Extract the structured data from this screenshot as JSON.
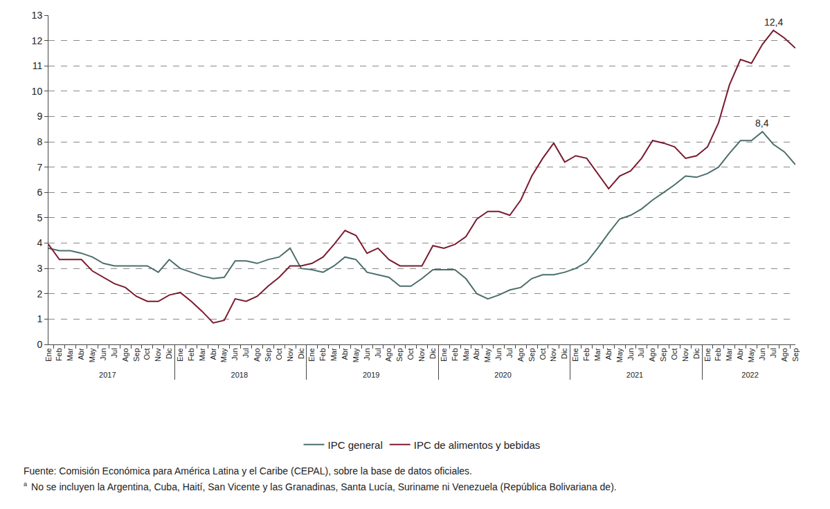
{
  "chart_data": {
    "type": "line",
    "categories": [
      [
        "2017",
        "Ene"
      ],
      [
        "2017",
        "Feb"
      ],
      [
        "2017",
        "Mar"
      ],
      [
        "2017",
        "Abr"
      ],
      [
        "2017",
        "May"
      ],
      [
        "2017",
        "Jun"
      ],
      [
        "2017",
        "Jul"
      ],
      [
        "2017",
        "Ago"
      ],
      [
        "2017",
        "Sep"
      ],
      [
        "2017",
        "Oct"
      ],
      [
        "2017",
        "Nov"
      ],
      [
        "2017",
        "Dic"
      ],
      [
        "2018",
        "Ene"
      ],
      [
        "2018",
        "Feb"
      ],
      [
        "2018",
        "Mar"
      ],
      [
        "2018",
        "Abr"
      ],
      [
        "2018",
        "May"
      ],
      [
        "2018",
        "Jun"
      ],
      [
        "2018",
        "Jul"
      ],
      [
        "2018",
        "Ago"
      ],
      [
        "2018",
        "Sep"
      ],
      [
        "2018",
        "Oct"
      ],
      [
        "2018",
        "Nov"
      ],
      [
        "2018",
        "Dic"
      ],
      [
        "2019",
        "Ene"
      ],
      [
        "2019",
        "Feb"
      ],
      [
        "2019",
        "Mar"
      ],
      [
        "2019",
        "Abr"
      ],
      [
        "2019",
        "May"
      ],
      [
        "2019",
        "Jun"
      ],
      [
        "2019",
        "Jul"
      ],
      [
        "2019",
        "Ago"
      ],
      [
        "2019",
        "Sep"
      ],
      [
        "2019",
        "Oct"
      ],
      [
        "2019",
        "Nov"
      ],
      [
        "2019",
        "Dic"
      ],
      [
        "2020",
        "Ene"
      ],
      [
        "2020",
        "Feb"
      ],
      [
        "2020",
        "Mar"
      ],
      [
        "2020",
        "Abr"
      ],
      [
        "2020",
        "May"
      ],
      [
        "2020",
        "Jun"
      ],
      [
        "2020",
        "Jul"
      ],
      [
        "2020",
        "Ago"
      ],
      [
        "2020",
        "Sep"
      ],
      [
        "2020",
        "Oct"
      ],
      [
        "2020",
        "Nov"
      ],
      [
        "2020",
        "Dic"
      ],
      [
        "2021",
        "Ene"
      ],
      [
        "2021",
        "Feb"
      ],
      [
        "2021",
        "Mar"
      ],
      [
        "2021",
        "Abr"
      ],
      [
        "2021",
        "May"
      ],
      [
        "2021",
        "Jun"
      ],
      [
        "2021",
        "Jul"
      ],
      [
        "2021",
        "Ago"
      ],
      [
        "2021",
        "Sep"
      ],
      [
        "2021",
        "Oct"
      ],
      [
        "2021",
        "Nov"
      ],
      [
        "2021",
        "Dic"
      ],
      [
        "2022",
        "Ene"
      ],
      [
        "2022",
        "Feb"
      ],
      [
        "2022",
        "Mar"
      ],
      [
        "2022",
        "Abr"
      ],
      [
        "2022",
        "May"
      ],
      [
        "2022",
        "Jun"
      ],
      [
        "2022",
        "Jul"
      ],
      [
        "2022",
        "Ago"
      ],
      [
        "2022",
        "Sep"
      ]
    ],
    "series": [
      {
        "name": "IPC general",
        "color": "#4a6e6c",
        "values": [
          3.8,
          3.7,
          3.7,
          3.6,
          3.45,
          3.2,
          3.1,
          3.1,
          3.1,
          3.1,
          2.85,
          3.35,
          3.0,
          2.85,
          2.7,
          2.6,
          2.65,
          3.3,
          3.3,
          3.2,
          3.35,
          3.45,
          3.8,
          3.0,
          2.95,
          2.85,
          3.1,
          3.45,
          3.35,
          2.85,
          2.75,
          2.65,
          2.3,
          2.3,
          2.6,
          2.95,
          2.95,
          2.95,
          2.6,
          2.0,
          1.8,
          1.95,
          2.15,
          2.25,
          2.6,
          2.75,
          2.75,
          2.85,
          3.0,
          3.25,
          3.8,
          4.4,
          4.95,
          5.1,
          5.35,
          5.7,
          6.0,
          6.3,
          6.65,
          6.6,
          6.75,
          7.0,
          7.55,
          8.05,
          8.05,
          8.4,
          7.9,
          7.6,
          7.1
        ]
      },
      {
        "name": "IPC de alimentos y bebidas",
        "color": "#7b1a2e",
        "values": [
          3.95,
          3.35,
          3.35,
          3.35,
          2.9,
          2.65,
          2.4,
          2.25,
          1.9,
          1.7,
          1.7,
          1.95,
          2.05,
          1.7,
          1.3,
          0.85,
          0.95,
          1.8,
          1.7,
          1.9,
          2.3,
          2.65,
          3.1,
          3.1,
          3.2,
          3.45,
          3.95,
          4.5,
          4.3,
          3.6,
          3.8,
          3.35,
          3.1,
          3.1,
          3.1,
          3.9,
          3.8,
          3.95,
          4.25,
          4.95,
          5.25,
          5.25,
          5.1,
          5.7,
          6.65,
          7.35,
          7.95,
          7.2,
          7.45,
          7.35,
          6.75,
          6.15,
          6.65,
          6.85,
          7.35,
          8.05,
          7.95,
          7.8,
          7.35,
          7.45,
          7.8,
          8.75,
          10.25,
          11.25,
          11.1,
          11.85,
          12.4,
          12.1,
          11.7
        ]
      }
    ],
    "ylim": [
      0,
      13
    ],
    "yticks": [
      0,
      1,
      2,
      3,
      4,
      5,
      6,
      7,
      8,
      9,
      10,
      11,
      12,
      13
    ],
    "grid": true,
    "legend": "bottom",
    "annotations": [
      {
        "text": "12,4",
        "year": "2022",
        "month": "Jul",
        "value": 12.4
      },
      {
        "text": "8,4",
        "year": "2022",
        "month": "Jun",
        "value": 8.4
      }
    ],
    "source": "Fuente: Comisión Económica para América Latina y el Caribe (CEPAL), sobre la base de datos oficiales.",
    "note": {
      "mark": "a",
      "text": "No se incluyen la Argentina, Cuba, Haití, San Vicente y las Granadinas, Santa Lucía, Suriname ni Venezuela (República Bolivariana de)."
    }
  }
}
